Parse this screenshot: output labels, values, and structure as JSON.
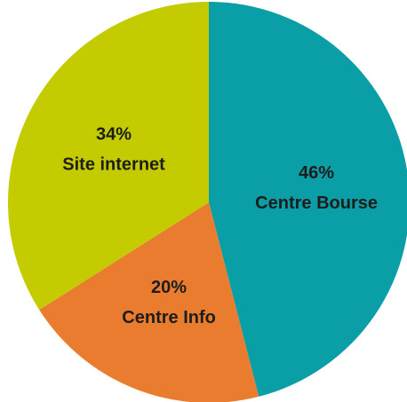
{
  "chart_data": {
    "type": "pie",
    "categories": [
      "Centre Bourse",
      "Centre Info",
      "Site internet"
    ],
    "values": [
      46,
      20,
      34
    ],
    "value_labels": [
      "46%",
      "20%",
      "34%"
    ],
    "colors": [
      "#0a9ea7",
      "#e97c2e",
      "#c4cc00"
    ]
  }
}
